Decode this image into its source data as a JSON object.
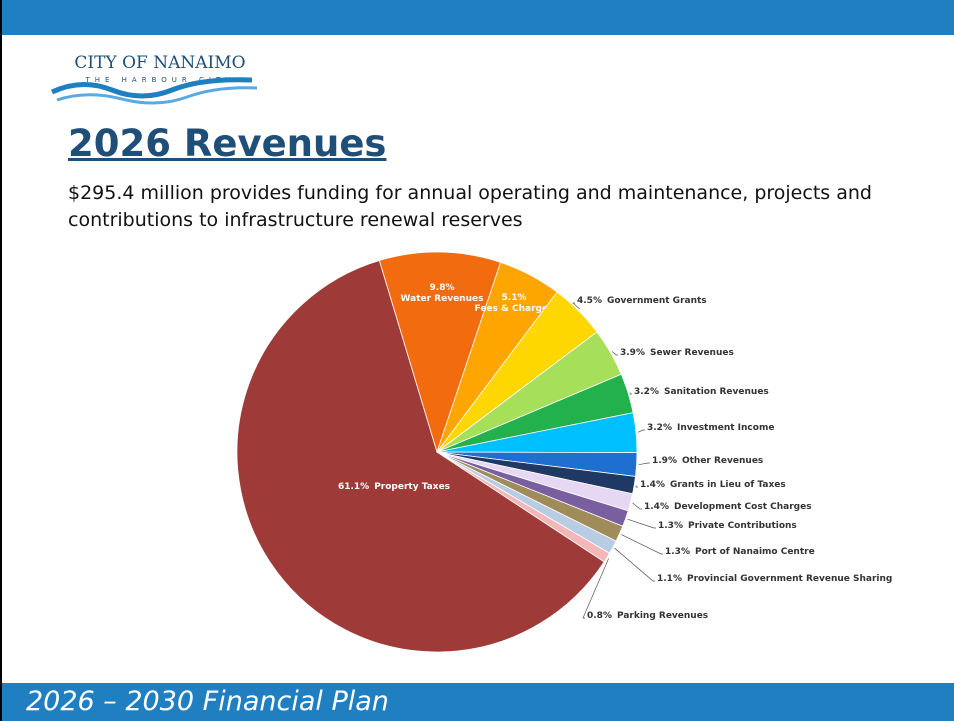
{
  "logo": {
    "name": "CITY OF NANAIMO",
    "tagline": "THE HARBOUR CITY"
  },
  "footer": "2026 – 2030 Financial Plan",
  "chart_data": {
    "type": "pie",
    "title": "2026 Revenues",
    "subtitle": "$295.4 million provides funding for annual operating and maintenance, projects and contributions to infrastructure renewal reserves",
    "categories": [
      "Property Taxes",
      "Water Revenues",
      "Fees & Charges",
      "Government Grants",
      "Sewer Revenues",
      "Sanitation Revenues",
      "Investment Income",
      "Other Revenues",
      "Grants in Lieu of Taxes",
      "Development Cost Charges",
      "Private Contributions",
      "Port of Nanaimo Centre",
      "Provincial Government Revenue Sharing",
      "Parking Revenues"
    ],
    "values": [
      61.1,
      9.8,
      5.1,
      4.5,
      3.9,
      3.2,
      3.2,
      1.9,
      1.4,
      1.4,
      1.3,
      1.3,
      1.1,
      0.8
    ],
    "value_labels": [
      "61.1%",
      "9.8%",
      "5.1%",
      "4.5%",
      "3.9%",
      "3.2%",
      "3.2%",
      "1.9%",
      "1.4%",
      "1.4%",
      "1.3%",
      "1.3%",
      "1.1%",
      "0.8%"
    ],
    "colors": [
      "#9e3b39",
      "#f26c0f",
      "#ffa500",
      "#ffd700",
      "#a6e05a",
      "#22b14c",
      "#00bfff",
      "#1f6fd0",
      "#1f3864",
      "#e6d8f2",
      "#7a5fa0",
      "#a08c5a",
      "#b8cce4",
      "#f4b6b6"
    ]
  }
}
